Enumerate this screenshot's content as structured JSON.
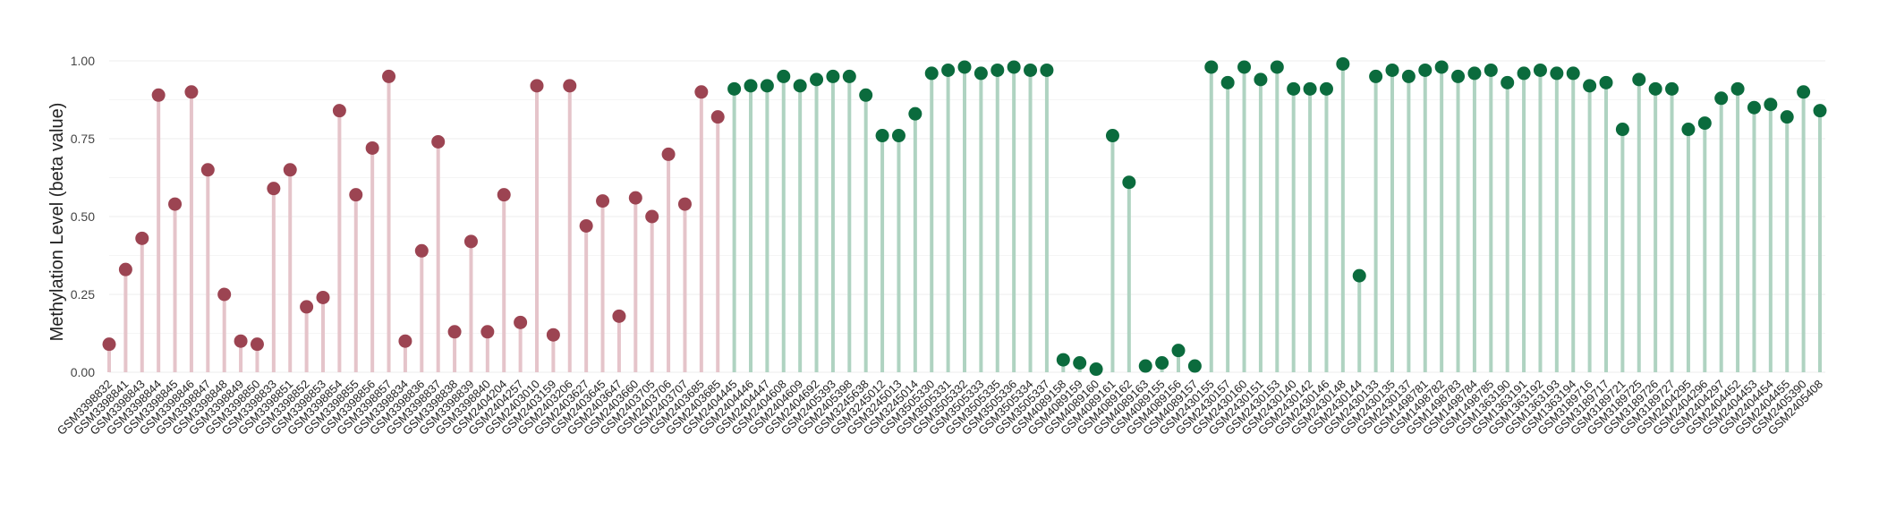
{
  "chart_data": {
    "type": "lollipop",
    "ylabel": "Methylation Level (beta value)",
    "ylim": [
      0,
      1
    ],
    "yticks": [
      0,
      0.25,
      0.5,
      0.75,
      1
    ],
    "ytick_labels": [
      "0.00",
      "0.25",
      "0.50",
      "0.75",
      "1.00"
    ],
    "grid": true,
    "colors": {
      "group1": "#9c4452",
      "group1_stem": "#e5c4ca",
      "group2": "#0b6b3d",
      "group2_stem": "#afd3c1"
    },
    "points": [
      {
        "sample": "GSM3398832",
        "value": 0.09,
        "group": 1
      },
      {
        "sample": "GSM3398841",
        "value": 0.33,
        "group": 1
      },
      {
        "sample": "GSM3398843",
        "value": 0.43,
        "group": 1
      },
      {
        "sample": "GSM3398844",
        "value": 0.89,
        "group": 1
      },
      {
        "sample": "GSM3398845",
        "value": 0.54,
        "group": 1
      },
      {
        "sample": "GSM3398846",
        "value": 0.9,
        "group": 1
      },
      {
        "sample": "GSM3398847",
        "value": 0.65,
        "group": 1
      },
      {
        "sample": "GSM3398848",
        "value": 0.25,
        "group": 1
      },
      {
        "sample": "GSM3398849",
        "value": 0.1,
        "group": 1
      },
      {
        "sample": "GSM3398850",
        "value": 0.09,
        "group": 1
      },
      {
        "sample": "GSM3398833",
        "value": 0.59,
        "group": 1
      },
      {
        "sample": "GSM3398851",
        "value": 0.65,
        "group": 1
      },
      {
        "sample": "GSM3398852",
        "value": 0.21,
        "group": 1
      },
      {
        "sample": "GSM3398853",
        "value": 0.24,
        "group": 1
      },
      {
        "sample": "GSM3398854",
        "value": 0.84,
        "group": 1
      },
      {
        "sample": "GSM3398855",
        "value": 0.57,
        "group": 1
      },
      {
        "sample": "GSM3398856",
        "value": 0.72,
        "group": 1
      },
      {
        "sample": "GSM3398857",
        "value": 0.95,
        "group": 1
      },
      {
        "sample": "GSM3398834",
        "value": 0.1,
        "group": 1
      },
      {
        "sample": "GSM3398836",
        "value": 0.39,
        "group": 1
      },
      {
        "sample": "GSM3398837",
        "value": 0.74,
        "group": 1
      },
      {
        "sample": "GSM3398838",
        "value": 0.13,
        "group": 1
      },
      {
        "sample": "GSM3398839",
        "value": 0.42,
        "group": 1
      },
      {
        "sample": "GSM3398840",
        "value": 0.13,
        "group": 1
      },
      {
        "sample": "GSM2404204",
        "value": 0.57,
        "group": 1
      },
      {
        "sample": "GSM2404257",
        "value": 0.16,
        "group": 1
      },
      {
        "sample": "GSM2403010",
        "value": 0.92,
        "group": 1
      },
      {
        "sample": "GSM2403159",
        "value": 0.12,
        "group": 1
      },
      {
        "sample": "GSM2403206",
        "value": 0.92,
        "group": 1
      },
      {
        "sample": "GSM2403627",
        "value": 0.47,
        "group": 1
      },
      {
        "sample": "GSM2403645",
        "value": 0.55,
        "group": 1
      },
      {
        "sample": "GSM2403647",
        "value": 0.18,
        "group": 1
      },
      {
        "sample": "GSM2403660",
        "value": 0.56,
        "group": 1
      },
      {
        "sample": "GSM2403705",
        "value": 0.5,
        "group": 1
      },
      {
        "sample": "GSM2403706",
        "value": 0.7,
        "group": 1
      },
      {
        "sample": "GSM2403707",
        "value": 0.54,
        "group": 1
      },
      {
        "sample": "GSM2403685",
        "value": 0.9,
        "group": 1
      },
      {
        "sample": "GSM2403685",
        "value": 0.82,
        "group": 1
      },
      {
        "sample": "GSM2404445",
        "value": 0.91,
        "group": 2
      },
      {
        "sample": "GSM2404446",
        "value": 0.92,
        "group": 2
      },
      {
        "sample": "GSM2404447",
        "value": 0.92,
        "group": 2
      },
      {
        "sample": "GSM2404608",
        "value": 0.95,
        "group": 2
      },
      {
        "sample": "GSM2404609",
        "value": 0.92,
        "group": 2
      },
      {
        "sample": "GSM2404692",
        "value": 0.94,
        "group": 2
      },
      {
        "sample": "GSM2405393",
        "value": 0.95,
        "group": 2
      },
      {
        "sample": "GSM2405398",
        "value": 0.95,
        "group": 2
      },
      {
        "sample": "GSM3245638",
        "value": 0.89,
        "group": 2
      },
      {
        "sample": "GSM3245012",
        "value": 0.76,
        "group": 2
      },
      {
        "sample": "GSM3245013",
        "value": 0.76,
        "group": 2
      },
      {
        "sample": "GSM3245014",
        "value": 0.83,
        "group": 2
      },
      {
        "sample": "GSM3505330",
        "value": 0.96,
        "group": 2
      },
      {
        "sample": "GSM3505331",
        "value": 0.97,
        "group": 2
      },
      {
        "sample": "GSM3505332",
        "value": 0.98,
        "group": 2
      },
      {
        "sample": "GSM3505333",
        "value": 0.96,
        "group": 2
      },
      {
        "sample": "GSM3505335",
        "value": 0.97,
        "group": 2
      },
      {
        "sample": "GSM3505336",
        "value": 0.98,
        "group": 2
      },
      {
        "sample": "GSM3505334",
        "value": 0.97,
        "group": 2
      },
      {
        "sample": "GSM3505337",
        "value": 0.97,
        "group": 2
      },
      {
        "sample": "GSM4089158",
        "value": 0.04,
        "group": 2
      },
      {
        "sample": "GSM4089159",
        "value": 0.03,
        "group": 2
      },
      {
        "sample": "GSM4089160",
        "value": 0.01,
        "group": 2
      },
      {
        "sample": "GSM4089161",
        "value": 0.76,
        "group": 2
      },
      {
        "sample": "GSM4089162",
        "value": 0.61,
        "group": 2
      },
      {
        "sample": "GSM4089163",
        "value": 0.02,
        "group": 2
      },
      {
        "sample": "GSM4089155",
        "value": 0.03,
        "group": 2
      },
      {
        "sample": "GSM4089156",
        "value": 0.07,
        "group": 2
      },
      {
        "sample": "GSM4089157",
        "value": 0.02,
        "group": 2
      },
      {
        "sample": "GSM2430155",
        "value": 0.98,
        "group": 2
      },
      {
        "sample": "GSM2430157",
        "value": 0.93,
        "group": 2
      },
      {
        "sample": "GSM2430160",
        "value": 0.98,
        "group": 2
      },
      {
        "sample": "GSM2430151",
        "value": 0.94,
        "group": 2
      },
      {
        "sample": "GSM2430153",
        "value": 0.98,
        "group": 2
      },
      {
        "sample": "GSM2430140",
        "value": 0.91,
        "group": 2
      },
      {
        "sample": "GSM2430142",
        "value": 0.91,
        "group": 2
      },
      {
        "sample": "GSM2430146",
        "value": 0.91,
        "group": 2
      },
      {
        "sample": "GSM2430148",
        "value": 0.99,
        "group": 2
      },
      {
        "sample": "GSM2430144",
        "value": 0.31,
        "group": 2
      },
      {
        "sample": "GSM2430133",
        "value": 0.95,
        "group": 2
      },
      {
        "sample": "GSM2430135",
        "value": 0.97,
        "group": 2
      },
      {
        "sample": "GSM2430137",
        "value": 0.95,
        "group": 2
      },
      {
        "sample": "GSM1498781",
        "value": 0.97,
        "group": 2
      },
      {
        "sample": "GSM1498782",
        "value": 0.98,
        "group": 2
      },
      {
        "sample": "GSM1498783",
        "value": 0.95,
        "group": 2
      },
      {
        "sample": "GSM1498784",
        "value": 0.96,
        "group": 2
      },
      {
        "sample": "GSM1498785",
        "value": 0.97,
        "group": 2
      },
      {
        "sample": "GSM1363190",
        "value": 0.93,
        "group": 2
      },
      {
        "sample": "GSM1363191",
        "value": 0.96,
        "group": 2
      },
      {
        "sample": "GSM1363192",
        "value": 0.97,
        "group": 2
      },
      {
        "sample": "GSM1363193",
        "value": 0.96,
        "group": 2
      },
      {
        "sample": "GSM1363194",
        "value": 0.96,
        "group": 2
      },
      {
        "sample": "GSM3189716",
        "value": 0.92,
        "group": 2
      },
      {
        "sample": "GSM3189717",
        "value": 0.93,
        "group": 2
      },
      {
        "sample": "GSM3189721",
        "value": 0.78,
        "group": 2
      },
      {
        "sample": "GSM3189725",
        "value": 0.94,
        "group": 2
      },
      {
        "sample": "GSM3189726",
        "value": 0.91,
        "group": 2
      },
      {
        "sample": "GSM3189727",
        "value": 0.91,
        "group": 2
      },
      {
        "sample": "GSM2404295",
        "value": 0.78,
        "group": 2
      },
      {
        "sample": "GSM2404296",
        "value": 0.8,
        "group": 2
      },
      {
        "sample": "GSM2404297",
        "value": 0.88,
        "group": 2
      },
      {
        "sample": "GSM2404452",
        "value": 0.91,
        "group": 2
      },
      {
        "sample": "GSM2404453",
        "value": 0.85,
        "group": 2
      },
      {
        "sample": "GSM2404454",
        "value": 0.86,
        "group": 2
      },
      {
        "sample": "GSM2404455",
        "value": 0.82,
        "group": 2
      },
      {
        "sample": "GSM2405390",
        "value": 0.9,
        "group": 2
      },
      {
        "sample": "GSM2405408",
        "value": 0.84,
        "group": 2
      }
    ]
  }
}
